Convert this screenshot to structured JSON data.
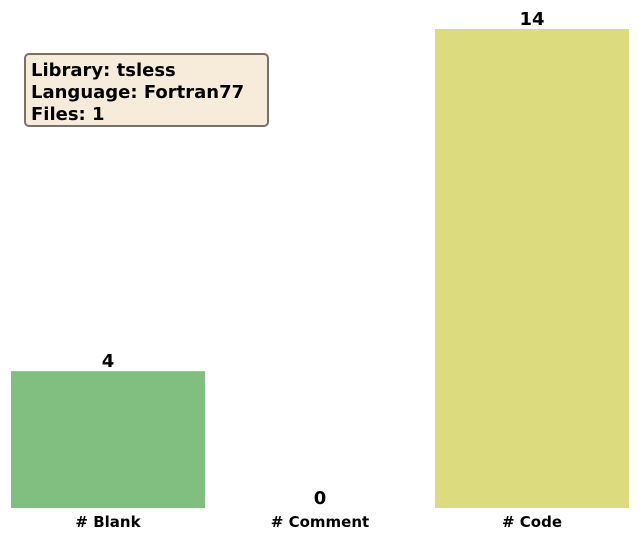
{
  "chart_data": {
    "type": "bar",
    "categories": [
      "# Blank",
      "# Comment",
      "# Code"
    ],
    "values": [
      4,
      0,
      14
    ],
    "colors": [
      "#81bf80",
      "#8fb8de",
      "#dcdc7e"
    ],
    "ylim": [
      0,
      14
    ],
    "grid": false,
    "title": "",
    "xlabel": "",
    "ylabel": ""
  },
  "infobox": {
    "library": "Library: tsless",
    "language": "Language: Fortran77",
    "files": "Files: 1"
  }
}
